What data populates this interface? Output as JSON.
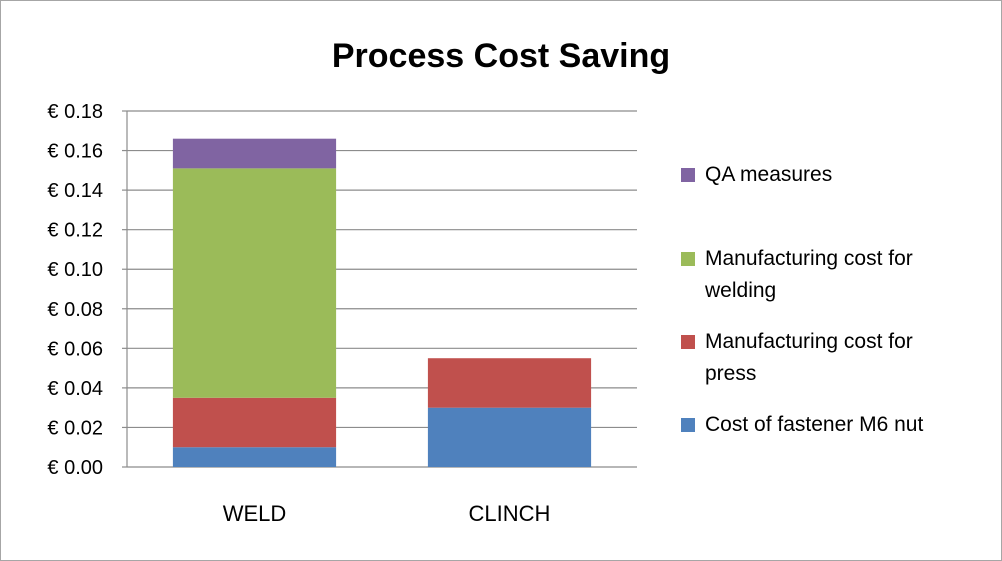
{
  "chart_data": {
    "type": "bar",
    "stacked": true,
    "title": "Process Cost Saving",
    "xlabel": "",
    "ylabel": "",
    "categories": [
      "WELD",
      "CLINCH"
    ],
    "series": [
      {
        "name": "Cost of fastener M6 nut",
        "values": [
          0.01,
          0.03
        ],
        "color": "#4f81bd"
      },
      {
        "name": "Manufacturing cost for press",
        "values": [
          0.025,
          0.025
        ],
        "color": "#c0504d"
      },
      {
        "name": "Manufacturing cost for welding",
        "values": [
          0.116,
          0
        ],
        "color": "#9bbb59"
      },
      {
        "name": "QA measures",
        "values": [
          0.015,
          0
        ],
        "color": "#8064a2"
      }
    ],
    "ylim": [
      0,
      0.18
    ],
    "yticks": [
      "€ 0.00",
      "€ 0.02",
      "€ 0.04",
      "€ 0.06",
      "€ 0.08",
      "€ 0.10",
      "€ 0.12",
      "€ 0.14",
      "€ 0.16",
      "€ 0.18"
    ],
    "ytick_values": [
      0,
      0.02,
      0.04,
      0.06,
      0.08,
      0.1,
      0.12,
      0.14,
      0.16,
      0.18
    ],
    "grid": true,
    "legend_position": "right",
    "legend_entries": [
      {
        "lines": [
          "QA measures"
        ],
        "color": "#8064a2"
      },
      {
        "lines": [
          "Manufacturing cost for",
          "welding"
        ],
        "color": "#9bbb59"
      },
      {
        "lines": [
          "Manufacturing cost for",
          "press"
        ],
        "color": "#c0504d"
      },
      {
        "lines": [
          "Cost of fastener M6 nut"
        ],
        "color": "#4f81bd"
      }
    ]
  }
}
